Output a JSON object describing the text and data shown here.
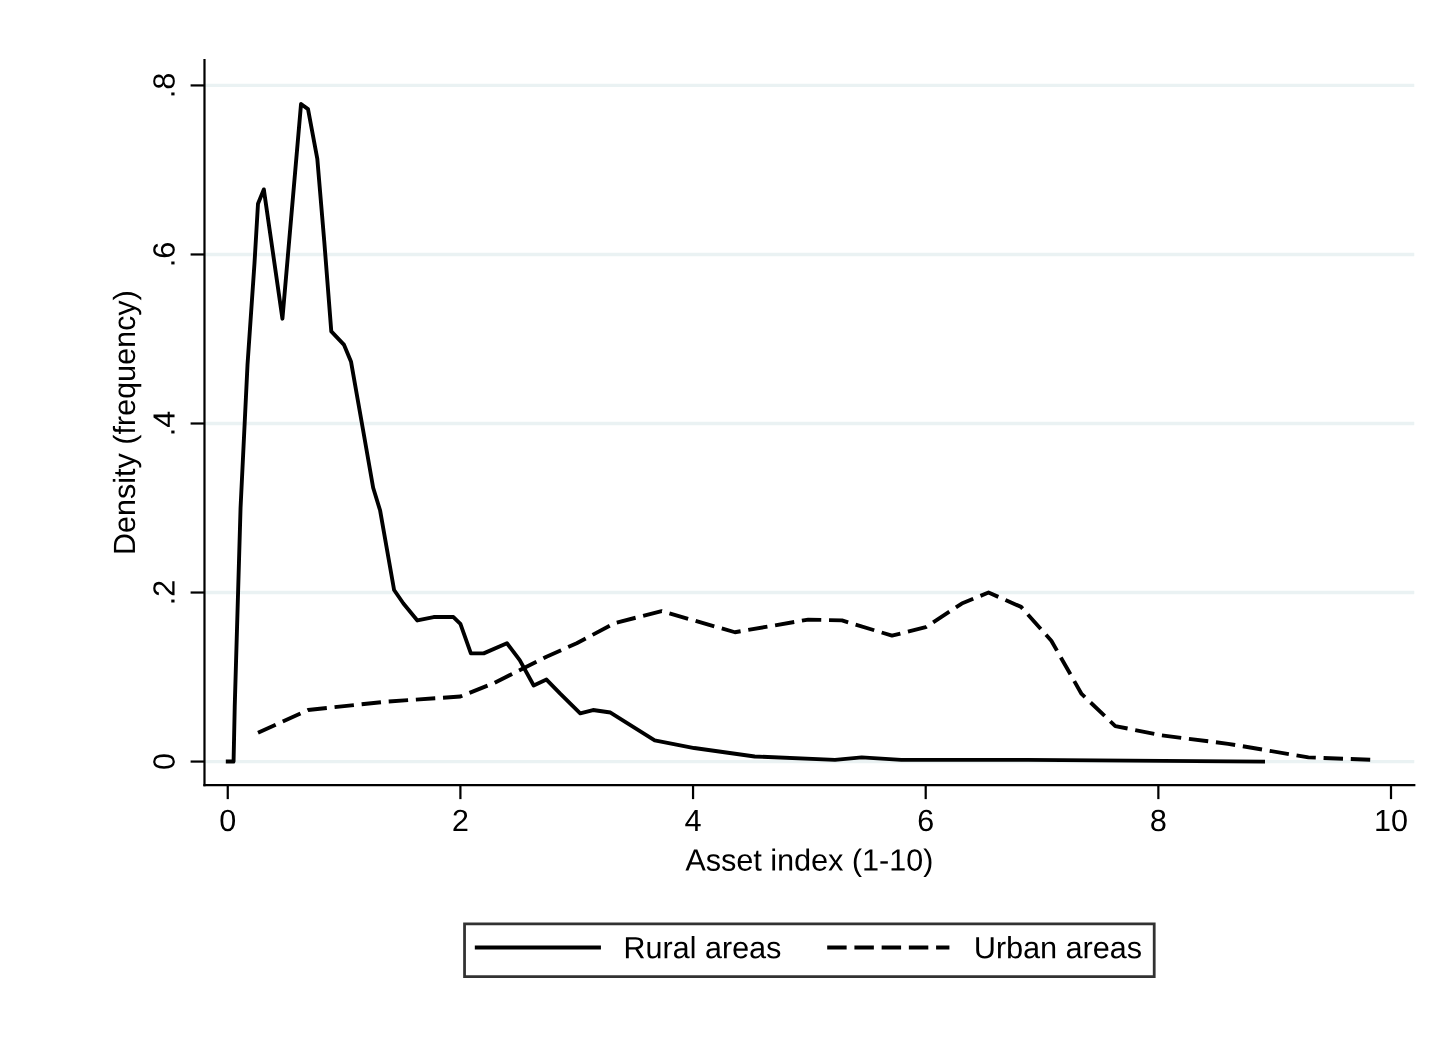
{
  "chart_data": {
    "type": "line",
    "xlabel": "Asset index (1-10)",
    "ylabel": "Density (frequency)",
    "xlim": [
      -0.2,
      10.2
    ],
    "xticks": [
      0,
      2,
      4,
      6,
      8,
      10
    ],
    "ylim": [
      -0.028,
      0.83
    ],
    "yticks": [
      0,
      {
        "value": 0.2,
        "label": ".2"
      },
      {
        "value": 0.4,
        "label": ".4"
      },
      {
        "value": 0.6,
        "label": ".6"
      },
      {
        "value": 0.8,
        "label": ".8"
      }
    ],
    "grid": "y",
    "legend": "bottom",
    "series": [
      {
        "name": "Rural areas",
        "color": "#000000",
        "line_style": "solid",
        "x": [
          0,
          0.05,
          0.06,
          0.11,
          0.17,
          0.23,
          0.26,
          0.31,
          0.47,
          0.63,
          0.69,
          0.77,
          0.83,
          0.89,
          1.0,
          1.06,
          1.17,
          1.25,
          1.31,
          1.43,
          1.51,
          1.63,
          1.77,
          1.94,
          2.0,
          2.09,
          2.2,
          2.4,
          2.51,
          2.63,
          2.74,
          2.86,
          3.03,
          3.14,
          3.29,
          3.67,
          4.01,
          4.53,
          5.22,
          5.45,
          5.79,
          6.88,
          8.9
        ],
        "values": [
          0,
          0,
          0.065,
          0.3,
          0.47,
          0.59,
          0.66,
          0.677,
          0.524,
          0.778,
          0.772,
          0.713,
          0.615,
          0.509,
          0.493,
          0.473,
          0.387,
          0.324,
          0.297,
          0.203,
          0.187,
          0.167,
          0.171,
          0.171,
          0.163,
          0.128,
          0.128,
          0.14,
          0.12,
          0.09,
          0.097,
          0.08,
          0.057,
          0.061,
          0.058,
          0.025,
          0.016,
          0.006,
          0.002,
          0.005,
          0.002,
          0.002,
          0
        ]
      },
      {
        "name": "Urban areas",
        "color": "#000000",
        "line_style": "dashed",
        "x": [
          0.26,
          0.69,
          1.37,
          2.0,
          2.29,
          2.74,
          3.0,
          3.33,
          3.73,
          4.36,
          4.99,
          5.28,
          5.71,
          6.0,
          6.31,
          6.54,
          6.82,
          7.08,
          7.34,
          7.63,
          8.03,
          8.6,
          9.29,
          9.84
        ],
        "values": [
          0.034,
          0.061,
          0.071,
          0.077,
          0.093,
          0.124,
          0.14,
          0.164,
          0.178,
          0.153,
          0.168,
          0.167,
          0.149,
          0.159,
          0.187,
          0.2,
          0.183,
          0.143,
          0.08,
          0.042,
          0.031,
          0.021,
          0.005,
          0.002
        ]
      }
    ]
  }
}
